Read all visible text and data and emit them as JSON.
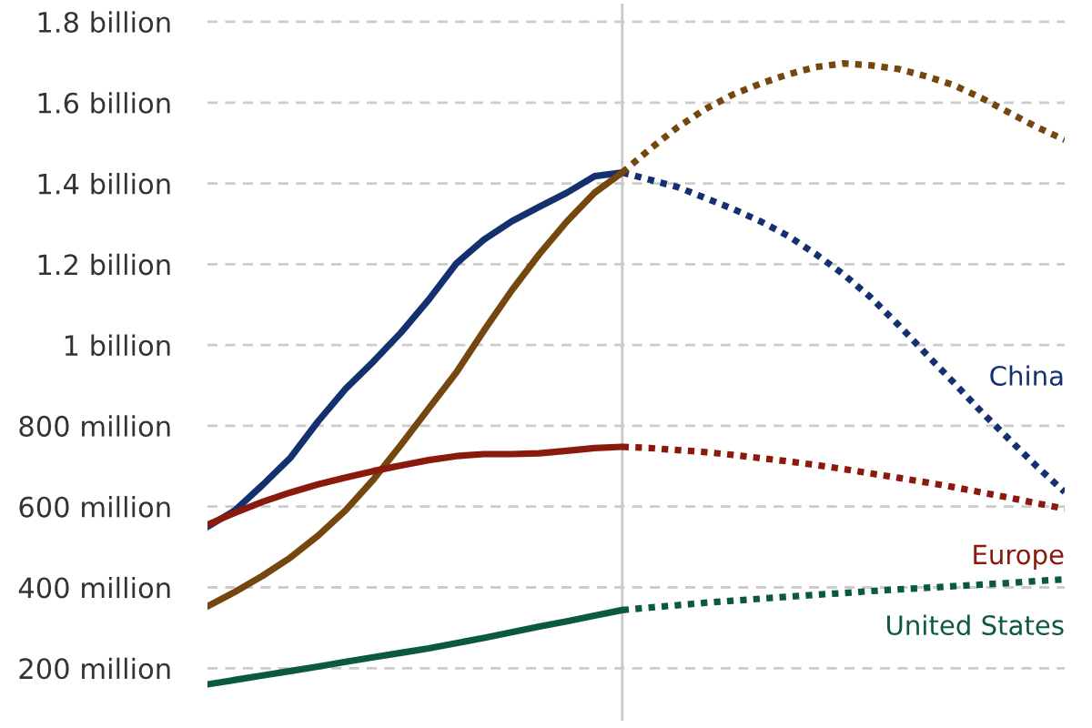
{
  "chart_data": {
    "type": "line",
    "categories": [
      null,
      null,
      null,
      null,
      null,
      null,
      null,
      null,
      null,
      null,
      null,
      null,
      null,
      null,
      null,
      null,
      null,
      null,
      null,
      null,
      null,
      null,
      null,
      null,
      null,
      null,
      null,
      null,
      null,
      null,
      null,
      null
    ],
    "series": [
      {
        "color": "#14306e",
        "line_style": "solid",
        "values": [
          550000000,
          591000000,
          654000000,
          721000000,
          811000000,
          892000000,
          959000000,
          1031000000,
          1112000000,
          1202000000,
          1261000000,
          1306000000,
          1342000000,
          1377000000,
          1418000000,
          1427000000,
          null,
          null,
          null,
          null,
          null,
          null,
          null,
          null,
          null,
          null,
          null,
          null,
          null,
          null,
          null,
          null
        ]
      },
      {
        "name": "China",
        "color": "#14306e",
        "line_style": "dotted",
        "values": [
          null,
          null,
          null,
          null,
          null,
          null,
          null,
          null,
          null,
          null,
          null,
          null,
          null,
          null,
          null,
          1427000000,
          1409000000,
          1391000000,
          1364000000,
          1337000000,
          1306000000,
          1270000000,
          1225000000,
          1175000000,
          1117000000,
          1049000000,
          977000000,
          906000000,
          834000000,
          766000000,
          699000000,
          636000000
        ]
      },
      {
        "color": "#74470f",
        "line_style": "solid",
        "values": [
          353000000,
          389000000,
          429000000,
          474000000,
          528000000,
          591000000,
          667000000,
          753000000,
          843000000,
          932000000,
          1036000000,
          1135000000,
          1225000000,
          1306000000,
          1377000000,
          1427000000,
          null,
          null,
          null,
          null,
          null,
          null,
          null,
          null,
          null,
          null,
          null,
          null,
          null,
          null,
          null,
          null
        ]
      },
      {
        "color": "#74470f",
        "line_style": "dotted",
        "values": [
          null,
          null,
          null,
          null,
          null,
          null,
          null,
          null,
          null,
          null,
          null,
          null,
          null,
          null,
          null,
          1427000000,
          1485000000,
          1539000000,
          1584000000,
          1620000000,
          1647000000,
          1670000000,
          1688000000,
          1697000000,
          1692000000,
          1683000000,
          1665000000,
          1643000000,
          1611000000,
          1575000000,
          1539000000,
          1508000000
        ]
      },
      {
        "color": "#8a1a0c",
        "line_style": "solid",
        "values": [
          555000000,
          585000000,
          612000000,
          635000000,
          655000000,
          672000000,
          688000000,
          702000000,
          715000000,
          725000000,
          730000000,
          730000000,
          732000000,
          738000000,
          745000000,
          748000000,
          null,
          null,
          null,
          null,
          null,
          null,
          null,
          null,
          null,
          null,
          null,
          null,
          null,
          null,
          null,
          null
        ]
      },
      {
        "name": "Europe",
        "color": "#8a1a0c",
        "line_style": "dotted",
        "values": [
          null,
          null,
          null,
          null,
          null,
          null,
          null,
          null,
          null,
          null,
          null,
          null,
          null,
          null,
          null,
          748000000,
          745000000,
          740000000,
          735000000,
          728000000,
          720000000,
          712000000,
          703000000,
          693000000,
          682000000,
          671000000,
          660000000,
          648000000,
          635000000,
          622000000,
          608000000,
          595000000
        ]
      },
      {
        "color": "#0b5a3c",
        "line_style": "solid",
        "values": [
          160000000,
          171000000,
          182000000,
          193000000,
          204000000,
          216000000,
          227000000,
          238000000,
          249000000,
          262000000,
          275000000,
          289000000,
          303000000,
          316000000,
          330000000,
          344000000,
          null,
          null,
          null,
          null,
          null,
          null,
          null,
          null,
          null,
          null,
          null,
          null,
          null,
          null,
          null,
          null
        ]
      },
      {
        "name": "United States",
        "color": "#0b5a3c",
        "line_style": "dotted",
        "values": [
          null,
          null,
          null,
          null,
          null,
          null,
          null,
          null,
          null,
          null,
          null,
          null,
          null,
          null,
          null,
          344000000,
          350000000,
          356000000,
          362000000,
          367000000,
          372000000,
          377000000,
          382000000,
          386000000,
          391000000,
          395000000,
          399000000,
          403000000,
          407000000,
          411000000,
          416000000,
          420000000
        ]
      }
    ],
    "ylim": [
      70000000,
      1845000000
    ],
    "yticks": [
      {
        "value": 200000000,
        "label": "200 million"
      },
      {
        "value": 400000000,
        "label": "400 million"
      },
      {
        "value": 600000000,
        "label": "600 million"
      },
      {
        "value": 800000000,
        "label": "800 million"
      },
      {
        "value": 1000000000,
        "label": "1 billion"
      },
      {
        "value": 1200000000,
        "label": "1.2 billion"
      },
      {
        "value": 1400000000,
        "label": "1.4 billion"
      },
      {
        "value": 1600000000,
        "label": "1.6 billion"
      },
      {
        "value": 1800000000,
        "label": "1.8 billion"
      }
    ],
    "tick_labels": "y",
    "grid": "y",
    "legend": false
  }
}
